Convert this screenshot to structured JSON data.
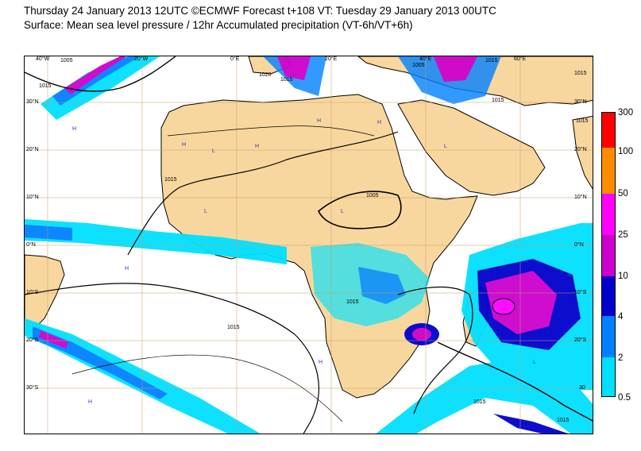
{
  "header": {
    "line1": "Thursday 24 January 2013 12UTC ©ECMWF Forecast t+108 VT: Tuesday 29 January 2013 00UTC",
    "line2": "Surface: Mean sea level pressure / 12hr Accumulated precipitation (VT-6h/VT+6h)"
  },
  "map": {
    "lon_labels": [
      "40°W",
      "20°W",
      "0°E",
      "20°E",
      "40°E",
      "60°E"
    ],
    "lat_labels": [
      "30°N",
      "20°N",
      "10°N",
      "0°N",
      "10°S",
      "20°S",
      "30°S"
    ],
    "right_lat_labels": [
      "30°N",
      "20°N",
      "10°N",
      "0°N",
      "10°S",
      "20°S",
      "30"
    ],
    "isobar_labels": [
      "1005",
      "1015",
      "1020",
      "1015",
      "1005",
      "1015",
      "1015",
      "1015",
      "1015",
      "1005",
      "1015",
      "1015",
      "1015",
      "1015",
      "1015"
    ],
    "pressure_markers": [
      "H",
      "L"
    ],
    "colors": {
      "land": "#f8d79e",
      "sea": "#ffffff",
      "coast": "#000000",
      "grid": "#c89a66"
    }
  },
  "legend": {
    "values": [
      "300",
      "100",
      "50",
      "25",
      "10",
      "4",
      "2",
      "0.5"
    ],
    "colors": [
      "#ff0000",
      "#ff8c00",
      "#ff00ff",
      "#cc00cc",
      "#0000cc",
      "#0080ff",
      "#00e0ff",
      "#ffffff"
    ]
  }
}
